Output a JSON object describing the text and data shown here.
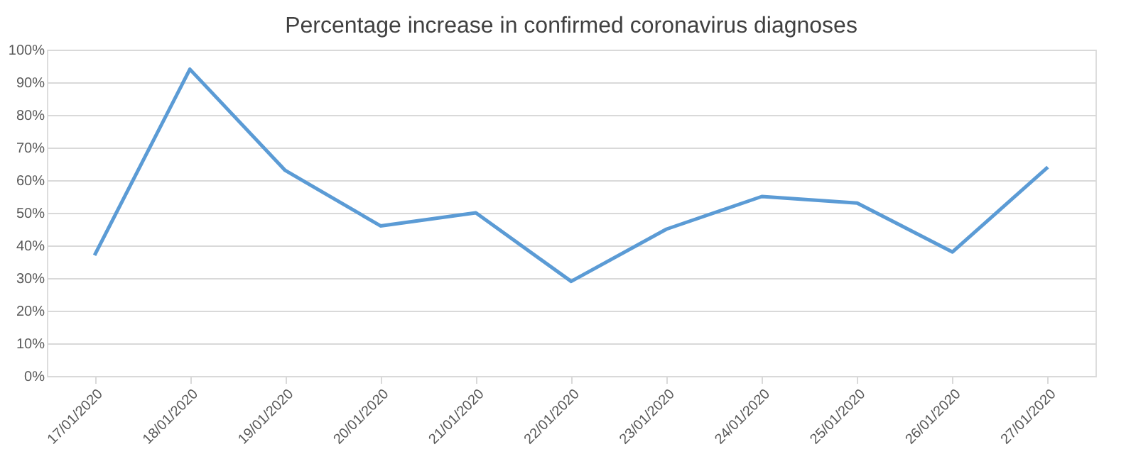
{
  "chart_data": {
    "type": "line",
    "title": "Percentage increase in confirmed coronavirus diagnoses",
    "categories": [
      "17/01/2020",
      "18/01/2020",
      "19/01/2020",
      "20/01/2020",
      "21/01/2020",
      "22/01/2020",
      "23/01/2020",
      "24/01/2020",
      "25/01/2020",
      "26/01/2020",
      "27/01/2020"
    ],
    "series": [
      {
        "color": "#5b9bd5",
        "values": [
          37,
          94,
          63,
          46,
          50,
          29,
          45,
          55,
          53,
          38,
          64
        ]
      }
    ],
    "ylim": [
      0,
      100
    ],
    "yticks": [
      {
        "value": 0,
        "label": "0%"
      },
      {
        "value": 10,
        "label": "10%"
      },
      {
        "value": 20,
        "label": "20%"
      },
      {
        "value": 30,
        "label": "30%"
      },
      {
        "value": 40,
        "label": "40%"
      },
      {
        "value": 50,
        "label": "50%"
      },
      {
        "value": 60,
        "label": "60%"
      },
      {
        "value": 70,
        "label": "70%"
      },
      {
        "value": 80,
        "label": "80%"
      },
      {
        "value": 90,
        "label": "90%"
      },
      {
        "value": 100,
        "label": "100%"
      }
    ],
    "grid": "y",
    "marker": "none",
    "line_style": "solid"
  }
}
